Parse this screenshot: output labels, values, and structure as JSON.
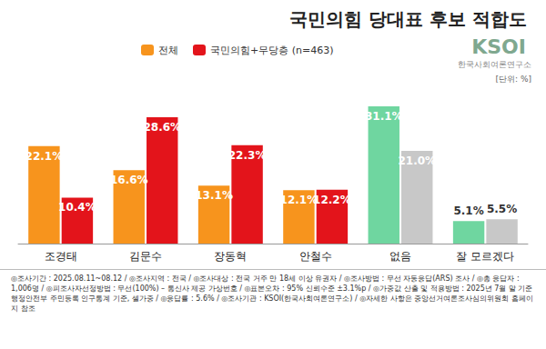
{
  "chart_data": {
    "type": "bar",
    "title": "국민의힘 당대표 후보 적합도",
    "logo": "KSOI",
    "logo_subtitle": "한국사회여론연구소",
    "unit": "[단위: %]",
    "footnote": "◎조사기간 : 2025.08.11~08.12 / ◎조사지역 : 전국 / ◎조사대상 : 전국 거주 만 18세 이상 유권자 / ◎조사방법 : 무선 자동응답(ARS) 조사 / ◎총 응답자 : 1,006명 / ◎피조사자선정방법 : 무선(100%) – 통신사 제공 가상번호 / ◎표본오차 : 95% 신뢰수준 ±3.1%p / ◎가중값 산출 및 적용방법 : 2025년 7월 말 기준 행정안전부 주민등록 인구통계 기준, 셀가중 / ◎응답률 : 5.6% / ◎조사기관 : KSOI(한국사회여론연구소) / ◎자세한 사항은 중앙선거여론조사심의위원회 홈페이지 참조",
    "categories": [
      "조경태",
      "김문수",
      "장동혁",
      "안철수",
      "없음",
      "잘 모르겠다"
    ],
    "series": [
      {
        "name": "전체",
        "color": "#f7941d",
        "colors": [
          "#f7941d",
          "#f7941d",
          "#f7941d",
          "#f7941d",
          "#6fd6a0",
          "#6fd6a0"
        ],
        "values": [
          22.1,
          16.6,
          13.1,
          12.1,
          31.1,
          5.1
        ],
        "value_labels": [
          "22.1%",
          "16.6%",
          "13.1%",
          "12.1%",
          "31.1%",
          "5.1%"
        ]
      },
      {
        "name": "국민의힘+무당층 (n=463)",
        "color": "#e3141b",
        "colors": [
          "#e3141b",
          "#e3141b",
          "#e3141b",
          "#e3141b",
          "#c8c8c8",
          "#c8c8c8"
        ],
        "values": [
          10.4,
          28.6,
          22.3,
          12.2,
          21.0,
          5.5
        ],
        "value_labels": [
          "10.4%",
          "28.6%",
          "22.3%",
          "12.2%",
          "21.0%",
          "5.5%"
        ]
      }
    ],
    "ylim": [
      0,
      35
    ],
    "grid": false,
    "legend": "top",
    "data_labels": true,
    "tick_labels": "x"
  }
}
